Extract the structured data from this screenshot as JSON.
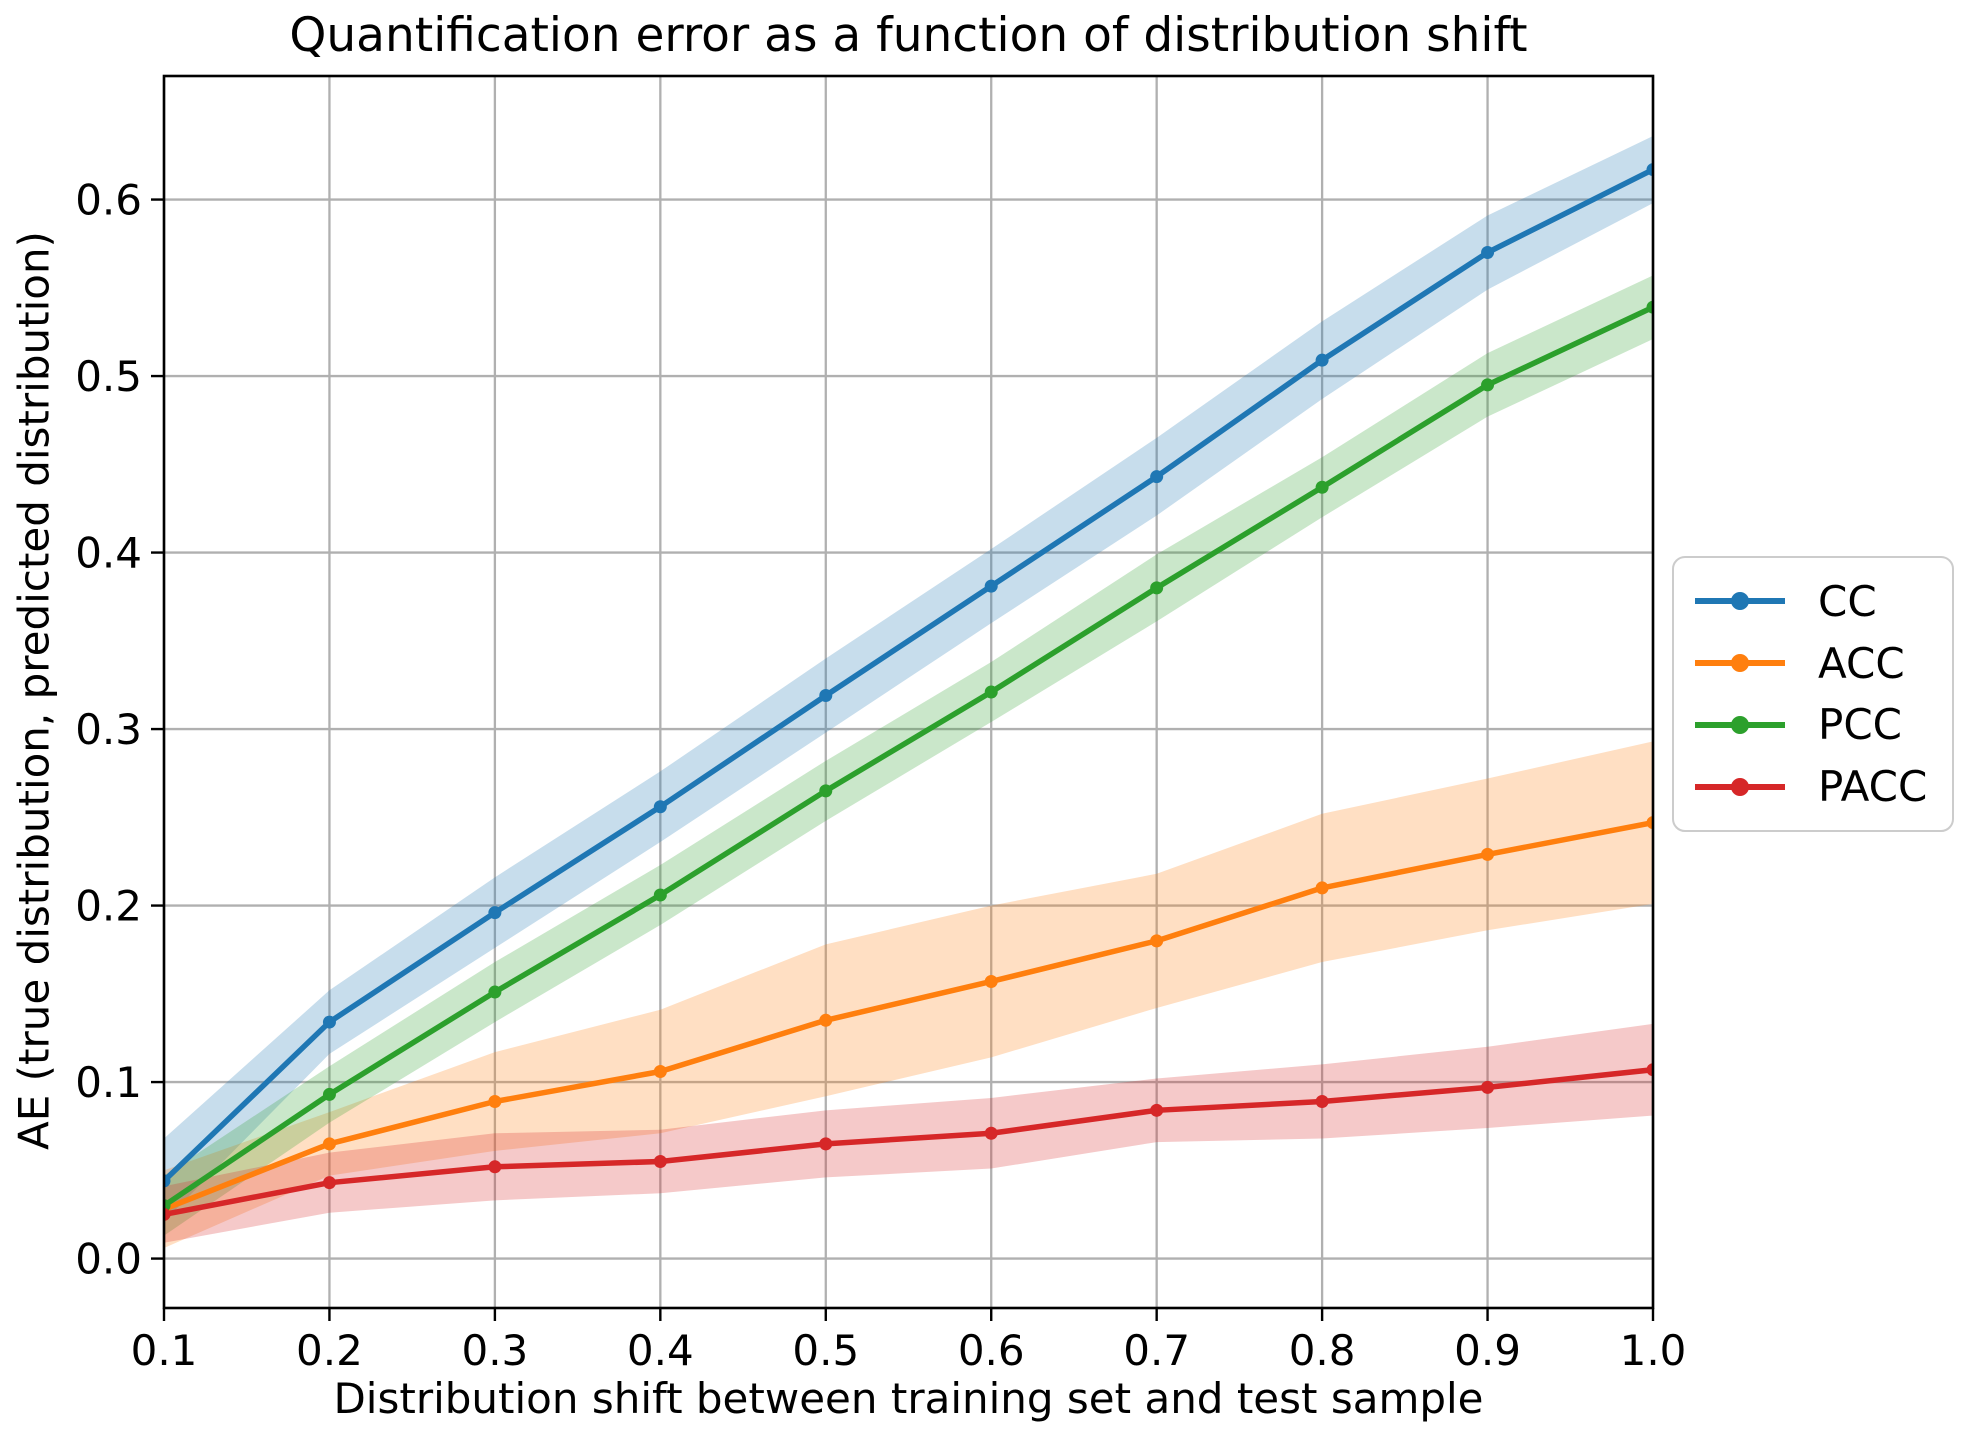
{
  "chart_data": {
    "type": "line",
    "title": "Quantification error as a function of distribution shift",
    "xlabel": "Distribution shift between training set and test sample",
    "ylabel": "AE (true distribution, predicted distribution)",
    "x": [
      0.1,
      0.2,
      0.3,
      0.4,
      0.5,
      0.6,
      0.7,
      0.8,
      0.9,
      1.0
    ],
    "xlim": [
      0.1,
      1.0
    ],
    "ylim": [
      -0.028,
      0.67
    ],
    "xticks": [
      0.1,
      0.2,
      0.3,
      0.4,
      0.5,
      0.6,
      0.7,
      0.8,
      0.9,
      1.0
    ],
    "xtick_labels": [
      "0.1",
      "0.2",
      "0.3",
      "0.4",
      "0.5",
      "0.6",
      "0.7",
      "0.8",
      "0.9",
      "1.0"
    ],
    "yticks": [
      0.0,
      0.1,
      0.2,
      0.3,
      0.4,
      0.5,
      0.6
    ],
    "ytick_labels": [
      "0.0",
      "0.1",
      "0.2",
      "0.3",
      "0.4",
      "0.5",
      "0.6"
    ],
    "grid": true,
    "grid_color": "#b0b0b0",
    "spine_color": "#000000",
    "band_alpha": 0.25,
    "legend_position": "center-right-outside",
    "series": [
      {
        "name": "CC",
        "color": "#1f77b4",
        "values": [
          0.044,
          0.134,
          0.196,
          0.256,
          0.319,
          0.381,
          0.443,
          0.509,
          0.57,
          0.617
        ],
        "band_lower": [
          0.021,
          0.116,
          0.176,
          0.236,
          0.298,
          0.36,
          0.421,
          0.487,
          0.549,
          0.598
        ],
        "band_upper": [
          0.068,
          0.152,
          0.216,
          0.276,
          0.34,
          0.402,
          0.465,
          0.531,
          0.591,
          0.636
        ]
      },
      {
        "name": "ACC",
        "color": "#ff7f0e",
        "values": [
          0.028,
          0.065,
          0.089,
          0.106,
          0.135,
          0.157,
          0.18,
          0.21,
          0.229,
          0.247
        ],
        "band_lower": [
          0.006,
          0.047,
          0.061,
          0.071,
          0.092,
          0.114,
          0.142,
          0.168,
          0.186,
          0.201
        ],
        "band_upper": [
          0.05,
          0.083,
          0.117,
          0.141,
          0.178,
          0.2,
          0.218,
          0.252,
          0.272,
          0.293
        ]
      },
      {
        "name": "PCC",
        "color": "#2ca02c",
        "values": [
          0.03,
          0.093,
          0.151,
          0.206,
          0.265,
          0.321,
          0.38,
          0.437,
          0.495,
          0.539
        ],
        "band_lower": [
          0.013,
          0.077,
          0.134,
          0.189,
          0.248,
          0.304,
          0.361,
          0.42,
          0.477,
          0.521
        ],
        "band_upper": [
          0.047,
          0.109,
          0.168,
          0.223,
          0.282,
          0.338,
          0.399,
          0.454,
          0.513,
          0.557
        ]
      },
      {
        "name": "PACC",
        "color": "#d62728",
        "values": [
          0.025,
          0.043,
          0.052,
          0.055,
          0.065,
          0.071,
          0.084,
          0.089,
          0.097,
          0.107
        ],
        "band_lower": [
          0.009,
          0.026,
          0.033,
          0.037,
          0.046,
          0.051,
          0.066,
          0.068,
          0.074,
          0.081
        ],
        "band_upper": [
          0.041,
          0.06,
          0.071,
          0.073,
          0.084,
          0.091,
          0.102,
          0.11,
          0.12,
          0.133
        ]
      }
    ]
  }
}
